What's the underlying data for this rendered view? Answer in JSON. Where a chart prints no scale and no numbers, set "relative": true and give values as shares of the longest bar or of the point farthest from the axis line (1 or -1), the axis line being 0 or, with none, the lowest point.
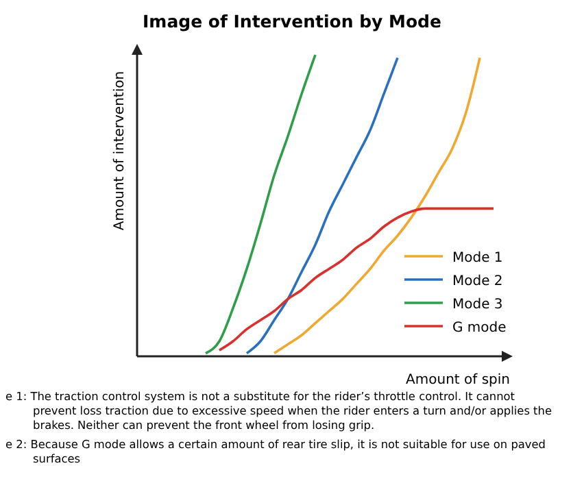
{
  "chart_data": {
    "type": "line",
    "title": "Image of Intervention by Mode",
    "xlabel": "Amount of spin",
    "ylabel": "Amount of intervention",
    "relative": true,
    "tick_labels": false,
    "legend": "bottom right",
    "categories": [
      null,
      null,
      null,
      null,
      null,
      null,
      null,
      null,
      null,
      null,
      null,
      null,
      null,
      null,
      null,
      null,
      null,
      null,
      null,
      null,
      null,
      null,
      null,
      null,
      null,
      null,
      null,
      null
    ],
    "series": [
      {
        "name": "Mode 1",
        "color": "#f0a830",
        "values": [
          null,
          null,
          null,
          null,
          null,
          null,
          null,
          null,
          null,
          null,
          0.01,
          0.04,
          0.07,
          0.11,
          0.15,
          0.19,
          0.24,
          0.29,
          0.35,
          0.4,
          0.46,
          0.53,
          0.61,
          0.69,
          0.81,
          0.99,
          null,
          null
        ]
      },
      {
        "name": "Mode 2",
        "color": "#2a70c0",
        "values": [
          null,
          null,
          null,
          null,
          null,
          null,
          null,
          null,
          0.01,
          0.05,
          0.12,
          0.19,
          0.28,
          0.37,
          0.48,
          0.57,
          0.66,
          0.75,
          0.87,
          0.99,
          null,
          null,
          null,
          null,
          null,
          null,
          null,
          null
        ]
      },
      {
        "name": "Mode 3",
        "color": "#2e9e4a",
        "values": [
          null,
          null,
          null,
          null,
          null,
          0.01,
          0.05,
          0.16,
          0.29,
          0.44,
          0.6,
          0.73,
          0.87,
          1,
          null,
          null,
          null,
          null,
          null,
          null,
          null,
          null,
          null,
          null,
          null,
          null,
          null,
          null
        ]
      },
      {
        "name": "G mode",
        "color": "#d8302c",
        "values": [
          null,
          null,
          null,
          null,
          null,
          null,
          0.02,
          0.05,
          0.09,
          0.12,
          0.15,
          0.19,
          0.22,
          0.26,
          0.29,
          0.32,
          0.36,
          0.39,
          0.43,
          0.46,
          0.48,
          0.49,
          0.49,
          0.49,
          0.49,
          0.49,
          0.49,
          null
        ]
      }
    ],
    "annotations": [
      "e 1: The traction control system is not a substitute for the rider’s throttle control. It cannot prevent loss traction due to excessive speed when the rider enters a turn and/or applies the brakes. Neither can prevent the front wheel from losing grip.",
      "e 2: Because G mode allows a certain amount of rear tire slip, it is not suitable for use on paved surfaces"
    ]
  }
}
